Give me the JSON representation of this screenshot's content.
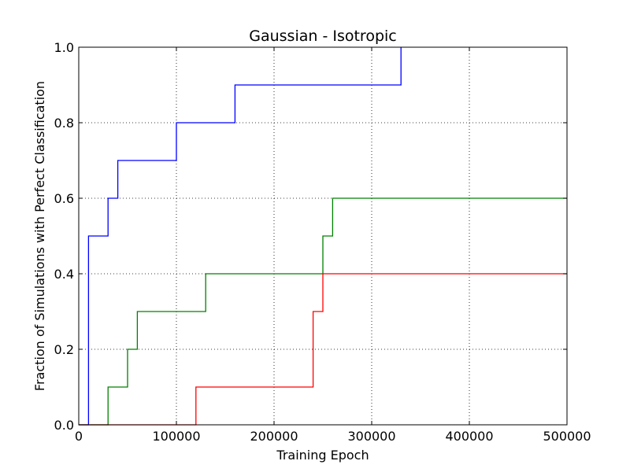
{
  "chart_data": {
    "type": "line",
    "step": true,
    "title": "Gaussian - Isotropic",
    "xlabel": "Training Epoch",
    "ylabel": "Fraction of Simulations with Perfect Classification",
    "xlim": [
      0,
      500000
    ],
    "ylim": [
      0,
      1.0
    ],
    "xticks": [
      0,
      100000,
      200000,
      300000,
      400000,
      500000
    ],
    "yticks": [
      0.0,
      0.2,
      0.4,
      0.6,
      0.8,
      1.0
    ],
    "xtick_labels": [
      "0",
      "100000",
      "200000",
      "300000",
      "400000",
      "500000"
    ],
    "ytick_labels": [
      "0.0",
      "0.2",
      "0.4",
      "0.6",
      "0.8",
      "1.0"
    ],
    "grid": true,
    "series": [
      {
        "color": "#0000ff",
        "x": [
          0,
          10000,
          30000,
          40000,
          100000,
          160000,
          330000
        ],
        "y": [
          0.0,
          0.5,
          0.6,
          0.7,
          0.8,
          0.9,
          1.0
        ]
      },
      {
        "color": "#008000",
        "x": [
          0,
          30000,
          50000,
          60000,
          130000,
          250000,
          260000,
          500000
        ],
        "y": [
          0.0,
          0.1,
          0.2,
          0.3,
          0.4,
          0.5,
          0.6,
          0.6
        ]
      },
      {
        "color": "#ff0000",
        "x": [
          0,
          120000,
          240000,
          250000,
          500000
        ],
        "y": [
          0.0,
          0.1,
          0.3,
          0.4,
          0.4
        ]
      }
    ]
  }
}
